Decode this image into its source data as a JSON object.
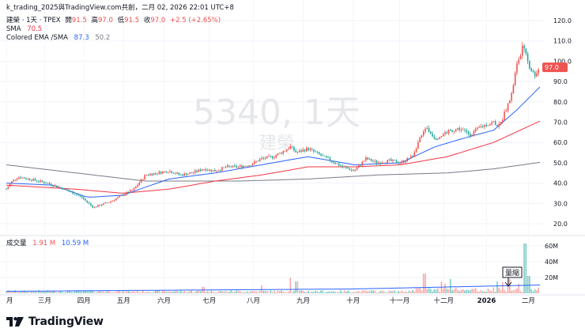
{
  "header": {
    "title": "k_trading_2025與TradingView.com共創，二月 02, 2026 22:01 UTC+8",
    "symbol": "建榮 · 1天 · TPEX",
    "ohlc": [
      {
        "label": "開",
        "value": "91.5"
      },
      {
        "label": "高",
        "value": "97.0"
      },
      {
        "label": "低",
        "value": "91.5"
      },
      {
        "label": "收",
        "value": "97.0"
      }
    ],
    "change": "+2.5 (+2.65%)",
    "sma_label": "SMA",
    "sma_value": "70.5",
    "ema_label": "Colored EMA /SMA",
    "ema_value1": "87.3",
    "ema_value2": "50.2"
  },
  "watermark": {
    "big": "5340, 1天",
    "small": "建榮"
  },
  "volume_legend": {
    "label": "成交量",
    "value1": "1.91 M",
    "value2": "10.59 M"
  },
  "annotation": {
    "text": "量縮"
  },
  "logo_text": "TradingView",
  "colors": {
    "up": "#ef5350",
    "down": "#26a69a",
    "ema": "#2962ff",
    "sma_red": "#f23645",
    "sma_gray": "#787b86",
    "vol_up": "#f7a9a7",
    "vol_down": "#80cbc4"
  },
  "chart_data": {
    "type": "candlestick",
    "price_axis": {
      "ticks": [
        20,
        30,
        40,
        50,
        60,
        70,
        80,
        90,
        100,
        110,
        120
      ],
      "unit": ""
    },
    "volume_axis": {
      "ticks": [
        "20M",
        "40M",
        "60M"
      ]
    },
    "x_tick_labels": [
      "月",
      "三月",
      "四月",
      "五月",
      "六月",
      "七月",
      "八月",
      "九月",
      "十月",
      "十一月",
      "十二月",
      "2026",
      "二月"
    ],
    "x_tick_days": [
      0,
      33,
      67,
      101,
      136,
      175,
      213,
      256,
      299,
      339,
      377,
      414,
      450
    ],
    "last_close": 97.0,
    "price_keypoints": [
      [
        0,
        37
      ],
      [
        5,
        41
      ],
      [
        10,
        43
      ],
      [
        20,
        42
      ],
      [
        35,
        40
      ],
      [
        50,
        37
      ],
      [
        65,
        33
      ],
      [
        75,
        28
      ],
      [
        90,
        31
      ],
      [
        100,
        34
      ],
      [
        110,
        37
      ],
      [
        120,
        44
      ],
      [
        130,
        45
      ],
      [
        140,
        46
      ],
      [
        150,
        44
      ],
      [
        160,
        45
      ],
      [
        170,
        47
      ],
      [
        180,
        46
      ],
      [
        190,
        48
      ],
      [
        200,
        48
      ],
      [
        210,
        49
      ],
      [
        220,
        52
      ],
      [
        230,
        53
      ],
      [
        240,
        56
      ],
      [
        245,
        58
      ],
      [
        250,
        55
      ],
      [
        260,
        57
      ],
      [
        270,
        54
      ],
      [
        280,
        51
      ],
      [
        290,
        48
      ],
      [
        300,
        46
      ],
      [
        310,
        52
      ],
      [
        320,
        50
      ],
      [
        330,
        51
      ],
      [
        340,
        50
      ],
      [
        350,
        53
      ],
      [
        355,
        60
      ],
      [
        362,
        67
      ],
      [
        370,
        62
      ],
      [
        380,
        65
      ],
      [
        390,
        67
      ],
      [
        400,
        64
      ],
      [
        410,
        68
      ],
      [
        420,
        70
      ],
      [
        425,
        68
      ],
      [
        430,
        75
      ],
      [
        435,
        82
      ],
      [
        440,
        98
      ],
      [
        445,
        107
      ],
      [
        450,
        99
      ],
      [
        455,
        93
      ],
      [
        460,
        97
      ]
    ],
    "ema_keypoints": [
      [
        0,
        40
      ],
      [
        40,
        39
      ],
      [
        70,
        33
      ],
      [
        100,
        34
      ],
      [
        140,
        42
      ],
      [
        180,
        45
      ],
      [
        220,
        49
      ],
      [
        260,
        53
      ],
      [
        300,
        49
      ],
      [
        340,
        50
      ],
      [
        370,
        58
      ],
      [
        400,
        63
      ],
      [
        420,
        66
      ],
      [
        440,
        76
      ],
      [
        460,
        87.3
      ]
    ],
    "sma_red_keypoints": [
      [
        0,
        39
      ],
      [
        60,
        37
      ],
      [
        100,
        35
      ],
      [
        140,
        37
      ],
      [
        180,
        41
      ],
      [
        220,
        44
      ],
      [
        260,
        48
      ],
      [
        300,
        48
      ],
      [
        340,
        49
      ],
      [
        380,
        53
      ],
      [
        420,
        60
      ],
      [
        460,
        70.5
      ]
    ],
    "sma_gray_keypoints": [
      [
        0,
        49
      ],
      [
        60,
        45
      ],
      [
        120,
        41
      ],
      [
        200,
        41
      ],
      [
        260,
        42
      ],
      [
        320,
        44
      ],
      [
        380,
        45
      ],
      [
        420,
        47
      ],
      [
        460,
        50.2
      ]
    ],
    "volume_spikes": [
      [
        170,
        8
      ],
      [
        220,
        10
      ],
      [
        245,
        20
      ],
      [
        250,
        15
      ],
      [
        360,
        25
      ],
      [
        375,
        15
      ],
      [
        378,
        12
      ],
      [
        383,
        18
      ],
      [
        423,
        15
      ],
      [
        428,
        14
      ],
      [
        433,
        18
      ],
      [
        442,
        12
      ],
      [
        447,
        63
      ],
      [
        450,
        22
      ]
    ]
  }
}
